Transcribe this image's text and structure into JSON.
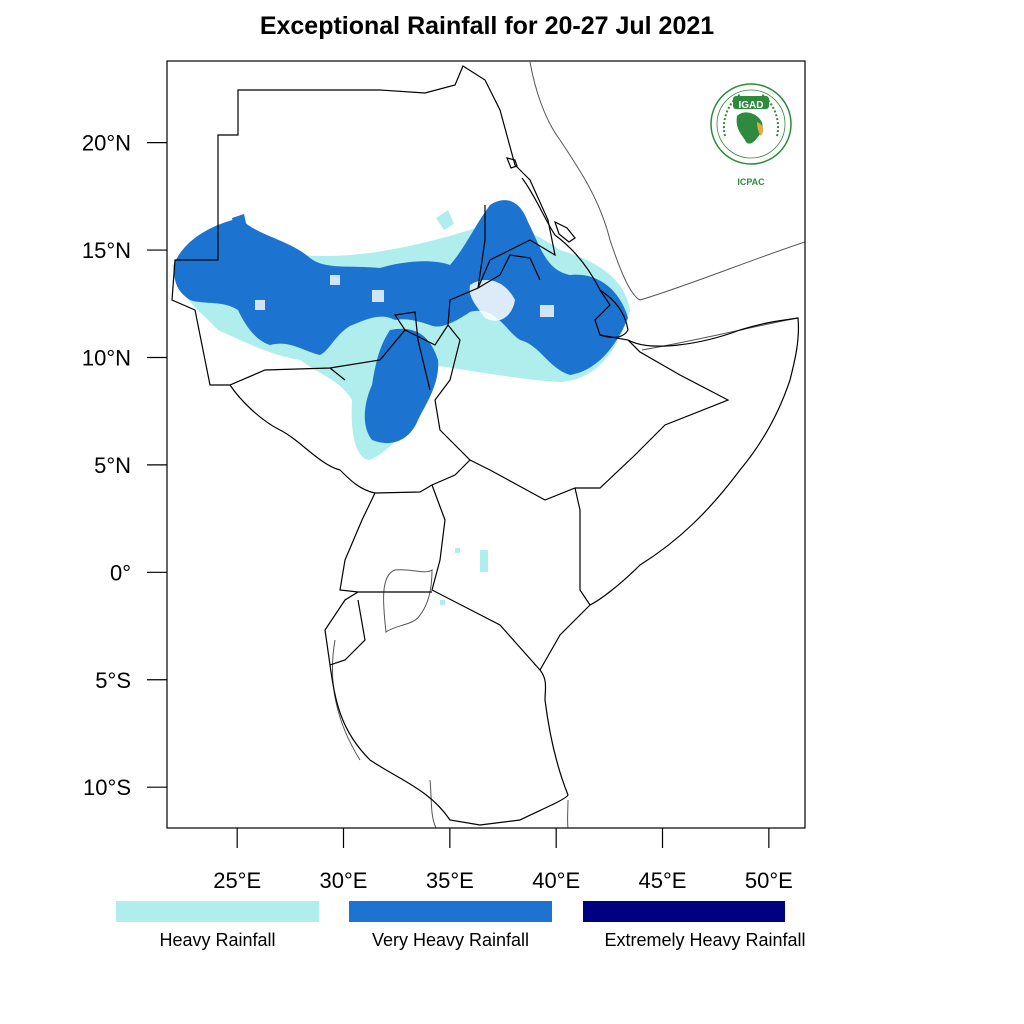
{
  "title": "Exceptional Rainfall for 20-27 Jul 2021",
  "map": {
    "lon_range": [
      21.7,
      51.7
    ],
    "lat_range": [
      -11.9,
      23.8
    ],
    "lon_ticks": [
      {
        "value": 25,
        "label": "25°E"
      },
      {
        "value": 30,
        "label": "30°E"
      },
      {
        "value": 35,
        "label": "35°E"
      },
      {
        "value": 40,
        "label": "40°E"
      },
      {
        "value": 45,
        "label": "45°E"
      },
      {
        "value": 50,
        "label": "50°E"
      }
    ],
    "lat_ticks": [
      {
        "value": 20,
        "label": "20°N"
      },
      {
        "value": 15,
        "label": "15°N"
      },
      {
        "value": 10,
        "label": "10°N"
      },
      {
        "value": 5,
        "label": "5°N"
      },
      {
        "value": 0,
        "label": "0°"
      },
      {
        "value": -5,
        "label": "5°S"
      },
      {
        "value": -10,
        "label": "10°S"
      }
    ]
  },
  "logo": {
    "name": "IGAD",
    "subtitle": "ICPAC",
    "ring_text": "INTERGOVERNMENTAL AUTHORITY ON DEVELOPMENT",
    "colors": {
      "green": "#2e8a3d",
      "gold": "#e8a93a",
      "blue": "#2a76c6"
    }
  },
  "legend": [
    {
      "label": "Heavy Rainfall",
      "color": "#b0eeee"
    },
    {
      "label": "Very Heavy Rainfall",
      "color": "#1c74d0"
    },
    {
      "label": "Extremely Heavy Rainfall",
      "color": "#000080"
    }
  ]
}
